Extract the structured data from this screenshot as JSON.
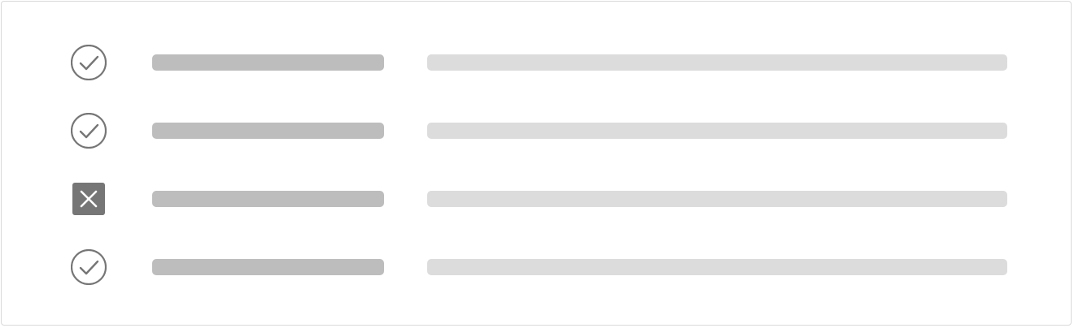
{
  "colors": {
    "icon": "#767676",
    "label_placeholder": "#bdbdbd",
    "value_placeholder": "#dcdcdc",
    "card_border": "#d9d9d9"
  },
  "rows": [
    {
      "status": "pass",
      "icon": "check-circle-icon"
    },
    {
      "status": "pass",
      "icon": "check-circle-icon"
    },
    {
      "status": "fail",
      "icon": "close-box-icon"
    },
    {
      "status": "pass",
      "icon": "check-circle-icon"
    }
  ]
}
